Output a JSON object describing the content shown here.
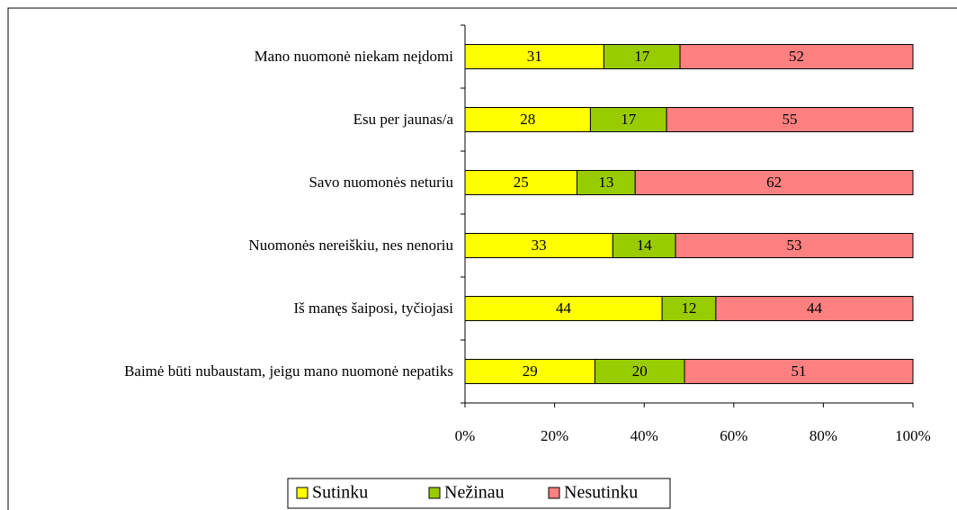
{
  "chart_data": {
    "type": "stacked_bar_horizontal",
    "categories": [
      "Mano nuomonė niekam neįdomi",
      "Esu per jaunas/a",
      "Savo nuomonės neturiu",
      "Nuomonės nereiškiu, nes nenoriu",
      "Iš manęs šaiposi, tyčiojasi",
      "Baimė būti nubaustam, jeigu mano nuomonė nepatiks"
    ],
    "series": [
      {
        "name": "Sutinku",
        "color": "#ffff00",
        "values": [
          31,
          28,
          25,
          33,
          44,
          29
        ]
      },
      {
        "name": "Nežinau",
        "color": "#99cc00",
        "values": [
          17,
          17,
          13,
          14,
          12,
          20
        ]
      },
      {
        "name": "Nesutinku",
        "color": "#ff8080",
        "values": [
          52,
          55,
          62,
          53,
          44,
          51
        ]
      }
    ],
    "xlim": [
      0,
      100
    ],
    "xticks": [
      {
        "value": 0,
        "label": "0%"
      },
      {
        "value": 20,
        "label": "20%"
      },
      {
        "value": 40,
        "label": "40%"
      },
      {
        "value": 60,
        "label": "60%"
      },
      {
        "value": 80,
        "label": "80%"
      },
      {
        "value": 100,
        "label": "100%"
      }
    ],
    "legend": "bottom"
  }
}
